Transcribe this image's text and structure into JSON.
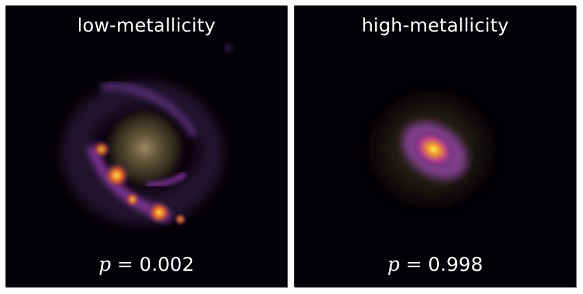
{
  "panels": [
    {
      "title": "low-metallicity",
      "p_symbol": "p",
      "p_value": "= 0.002"
    },
    {
      "title": "high-metallicity",
      "p_symbol": "p",
      "p_value": "= 0.998"
    }
  ]
}
